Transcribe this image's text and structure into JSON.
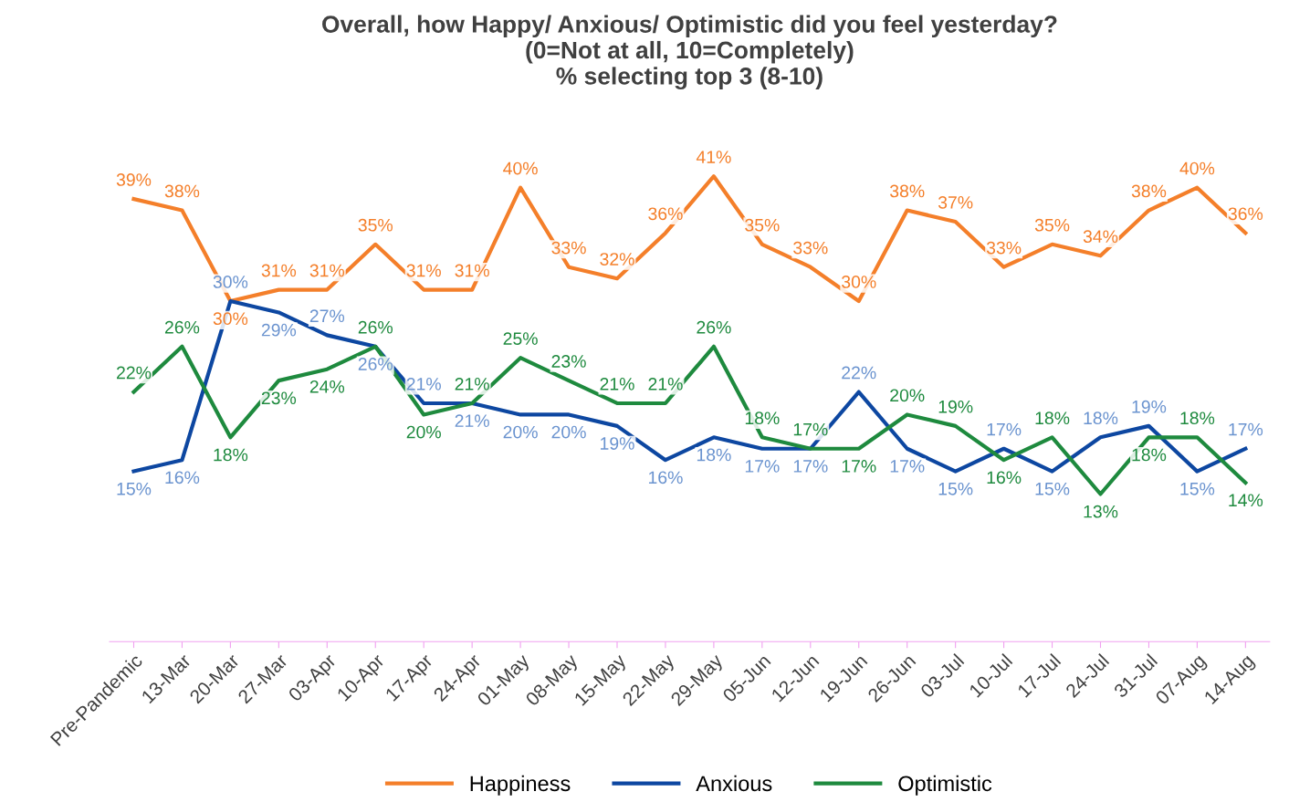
{
  "chart_data": {
    "type": "line",
    "title": "Overall, how Happy/ Anxious/ Optimistic did you feel yesterday?\n(0=Not at all, 10=Completely)\n% selecting top 3 (8-10)",
    "categories": [
      "Pre-Pandemic",
      "13-Mar",
      "20-Mar",
      "27-Mar",
      "03-Apr",
      "10-Apr",
      "17-Apr",
      "24-Apr",
      "01-May",
      "08-May",
      "15-May",
      "22-May",
      "29-May",
      "05-Jun",
      "12-Jun",
      "19-Jun",
      "26-Jun",
      "03-Jul",
      "10-Jul",
      "17-Jul",
      "24-Jul",
      "31-Jul",
      "07-Aug",
      "14-Aug"
    ],
    "series": [
      {
        "name": "Happiness",
        "color": "#f47f2a",
        "values": [
          39,
          38,
          30,
          31,
          31,
          35,
          31,
          31,
          40,
          33,
          32,
          36,
          41,
          35,
          33,
          30,
          38,
          37,
          33,
          35,
          34,
          38,
          40,
          36
        ],
        "value_labels": [
          "39%",
          "38%",
          "30%",
          "31%",
          "31%",
          "35%",
          "31%",
          "31%",
          "40%",
          "33%",
          "32%",
          "36%",
          "41%",
          "35%",
          "33%",
          "30%",
          "38%",
          "37%",
          "33%",
          "35%",
          "34%",
          "38%",
          "40%",
          "36%"
        ]
      },
      {
        "name": "Anxious",
        "color": "#0d47a1",
        "values": [
          15,
          16,
          30,
          29,
          27,
          26,
          21,
          21,
          20,
          20,
          19,
          16,
          18,
          17,
          17,
          22,
          17,
          15,
          17,
          15,
          18,
          19,
          15,
          17
        ],
        "value_labels": [
          "15%",
          "16%",
          "30%",
          "29%",
          "27%",
          "26%",
          "21%",
          "21%",
          "20%",
          "20%",
          "19%",
          "16%",
          "18%",
          "17%",
          "17%",
          "22%",
          "17%",
          "15%",
          "17%",
          "15%",
          "18%",
          "19%",
          "15%",
          "17%"
        ]
      },
      {
        "name": "Optimistic",
        "color": "#1e8a3e",
        "values": [
          22,
          26,
          18,
          23,
          24,
          26,
          20,
          21,
          25,
          23,
          21,
          21,
          26,
          18,
          17,
          17,
          20,
          19,
          16,
          18,
          13,
          18,
          18,
          14
        ],
        "value_labels": [
          "22%",
          "26%",
          "18%",
          "23%",
          "24%",
          "26%",
          "20%",
          "21%",
          "25%",
          "23%",
          "21%",
          "21%",
          "26%",
          "18%",
          "17%",
          "17%",
          "20%",
          "19%",
          "16%",
          "18%",
          "13%",
          "18%",
          "18%",
          "14%"
        ]
      }
    ],
    "legend": "bottom",
    "marker": "none",
    "line_style": "solid"
  }
}
